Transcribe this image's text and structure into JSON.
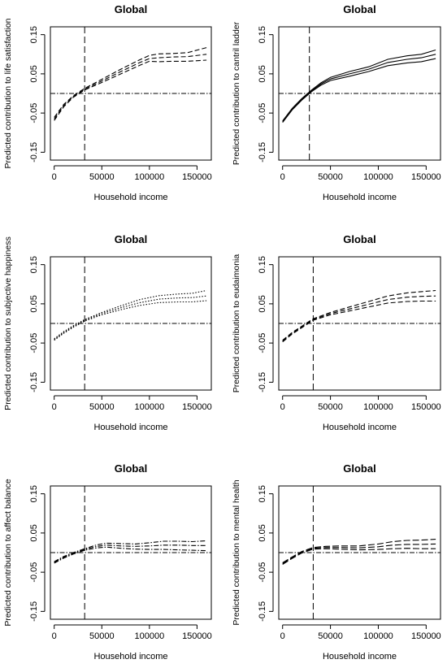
{
  "chart_data": [
    {
      "type": "line",
      "title": "Global",
      "xlabel": "Household income",
      "ylabel": "Predicted contribution to life satisfaction",
      "xlim": [
        -4000,
        165000
      ],
      "ylim": [
        -0.17,
        0.17
      ],
      "xticks": [
        0,
        50000,
        100000,
        150000
      ],
      "xticklabels": [
        "0",
        "50000",
        "100000",
        "150000"
      ],
      "yticks": [
        -0.15,
        -0.05,
        0.05,
        0.15
      ],
      "yticklabels": [
        "-0.15",
        "-0.05",
        "0.05",
        "0.15"
      ],
      "vline": 32000,
      "hline": 0,
      "line_style": "dashed",
      "x": [
        0,
        10000,
        20000,
        32000,
        50000,
        70000,
        90000,
        100000,
        110000,
        125000,
        140000,
        160000
      ],
      "series": [
        {
          "values": [
            -0.061,
            -0.028,
            -0.006,
            0.013,
            0.036,
            0.062,
            0.086,
            0.097,
            0.101,
            0.102,
            0.104,
            0.117
          ]
        },
        {
          "values": [
            -0.065,
            -0.031,
            -0.008,
            0.011,
            0.032,
            0.056,
            0.079,
            0.089,
            0.091,
            0.093,
            0.094,
            0.1
          ]
        },
        {
          "values": [
            -0.069,
            -0.034,
            -0.01,
            0.009,
            0.028,
            0.05,
            0.072,
            0.082,
            0.081,
            0.082,
            0.082,
            0.085
          ]
        }
      ]
    },
    {
      "type": "line",
      "title": "Global",
      "xlabel": "Household income",
      "ylabel": "Predicted contribution to cantril ladder",
      "xlim": [
        -4000,
        165000
      ],
      "ylim": [
        -0.17,
        0.17
      ],
      "xticks": [
        0,
        50000,
        100000,
        150000
      ],
      "xticklabels": [
        "0",
        "50000",
        "100000",
        "150000"
      ],
      "yticks": [
        -0.15,
        -0.05,
        0.05,
        0.15
      ],
      "yticklabels": [
        "-0.15",
        "-0.05",
        "0.05",
        "0.15"
      ],
      "vline": 28000,
      "hline": 0,
      "line_style": "solid",
      "x": [
        0,
        10000,
        20000,
        30000,
        40000,
        50000,
        70000,
        90000,
        110000,
        130000,
        145000,
        160000
      ],
      "series": [
        {
          "values": [
            -0.07,
            -0.038,
            -0.013,
            0.008,
            0.027,
            0.041,
            0.056,
            0.068,
            0.087,
            0.096,
            0.1,
            0.111
          ]
        },
        {
          "values": [
            -0.072,
            -0.04,
            -0.015,
            0.006,
            0.024,
            0.037,
            0.05,
            0.062,
            0.079,
            0.087,
            0.091,
            0.1
          ]
        },
        {
          "values": [
            -0.074,
            -0.042,
            -0.017,
            0.004,
            0.021,
            0.033,
            0.044,
            0.056,
            0.071,
            0.078,
            0.081,
            0.089
          ]
        }
      ]
    },
    {
      "type": "line",
      "title": "Global",
      "xlabel": "Household income",
      "ylabel": "Predicted contribution to subjective happiness",
      "xlim": [
        -4000,
        165000
      ],
      "ylim": [
        -0.17,
        0.17
      ],
      "xticks": [
        0,
        50000,
        100000,
        150000
      ],
      "xticklabels": [
        "0",
        "50000",
        "100000",
        "150000"
      ],
      "yticks": [
        -0.15,
        -0.05,
        0.05,
        0.15
      ],
      "yticklabels": [
        "-0.15",
        "-0.05",
        "0.05",
        "0.15"
      ],
      "vline": 32000,
      "hline": 0,
      "line_style": "dotted",
      "x": [
        0,
        10000,
        20000,
        32000,
        50000,
        70000,
        90000,
        110000,
        130000,
        145000,
        160000
      ],
      "series": [
        {
          "values": [
            -0.039,
            -0.021,
            -0.006,
            0.01,
            0.028,
            0.045,
            0.061,
            0.071,
            0.075,
            0.077,
            0.084
          ]
        },
        {
          "values": [
            -0.041,
            -0.023,
            -0.008,
            0.008,
            0.025,
            0.04,
            0.053,
            0.062,
            0.065,
            0.066,
            0.07
          ]
        },
        {
          "values": [
            -0.043,
            -0.025,
            -0.01,
            0.006,
            0.022,
            0.035,
            0.046,
            0.053,
            0.055,
            0.055,
            0.058
          ]
        }
      ]
    },
    {
      "type": "line",
      "title": "Global",
      "xlabel": "Household income",
      "ylabel": "Predicted contribution to eudaimonia",
      "xlim": [
        -4000,
        165000
      ],
      "ylim": [
        -0.17,
        0.17
      ],
      "xticks": [
        0,
        50000,
        100000,
        150000
      ],
      "xticklabels": [
        "0",
        "50000",
        "100000",
        "150000"
      ],
      "yticks": [
        -0.15,
        -0.05,
        0.05,
        0.15
      ],
      "yticklabels": [
        "-0.15",
        "-0.05",
        "0.05",
        "0.15"
      ],
      "vline": 32000,
      "hline": 0,
      "line_style": "dashed",
      "x": [
        0,
        10000,
        20000,
        32000,
        50000,
        70000,
        90000,
        110000,
        130000,
        145000,
        160000
      ],
      "series": [
        {
          "values": [
            -0.043,
            -0.023,
            -0.007,
            0.012,
            0.028,
            0.042,
            0.056,
            0.07,
            0.078,
            0.081,
            0.084
          ]
        },
        {
          "values": [
            -0.045,
            -0.025,
            -0.009,
            0.01,
            0.025,
            0.037,
            0.049,
            0.061,
            0.067,
            0.069,
            0.07
          ]
        },
        {
          "values": [
            -0.047,
            -0.027,
            -0.011,
            0.008,
            0.022,
            0.032,
            0.042,
            0.052,
            0.056,
            0.057,
            0.057
          ]
        }
      ]
    },
    {
      "type": "line",
      "title": "Global",
      "xlabel": "Household income",
      "ylabel": "Predicted contribution to affect balance",
      "xlim": [
        -4000,
        165000
      ],
      "ylim": [
        -0.17,
        0.17
      ],
      "xticks": [
        0,
        50000,
        100000,
        150000
      ],
      "xticklabels": [
        "0",
        "50000",
        "100000",
        "150000"
      ],
      "yticks": [
        -0.15,
        -0.05,
        0.05,
        0.15
      ],
      "yticklabels": [
        "-0.15",
        "-0.05",
        "0.05",
        "0.15"
      ],
      "vline": 32000,
      "hline": 0,
      "line_style": "dash-dot",
      "x": [
        0,
        10000,
        20000,
        32000,
        45000,
        55000,
        70000,
        85000,
        100000,
        115000,
        130000,
        145000,
        160000
      ],
      "series": [
        {
          "values": [
            -0.023,
            -0.01,
            0.0,
            0.01,
            0.02,
            0.024,
            0.023,
            0.022,
            0.025,
            0.029,
            0.029,
            0.028,
            0.03
          ]
        },
        {
          "values": [
            -0.025,
            -0.012,
            -0.002,
            0.008,
            0.016,
            0.019,
            0.017,
            0.016,
            0.017,
            0.019,
            0.019,
            0.018,
            0.018
          ]
        },
        {
          "values": [
            -0.027,
            -0.014,
            -0.004,
            0.006,
            0.012,
            0.014,
            0.011,
            0.009,
            0.008,
            0.008,
            0.007,
            0.006,
            0.005
          ]
        }
      ]
    },
    {
      "type": "line",
      "title": "Global",
      "xlabel": "Household income",
      "ylabel": "Predicted contribution to mental health",
      "xlim": [
        -4000,
        165000
      ],
      "ylim": [
        -0.17,
        0.17
      ],
      "xticks": [
        0,
        50000,
        100000,
        150000
      ],
      "xticklabels": [
        "0",
        "50000",
        "100000",
        "150000"
      ],
      "yticks": [
        -0.15,
        -0.05,
        0.05,
        0.15
      ],
      "yticklabels": [
        "-0.15",
        "-0.05",
        "0.05",
        "0.15"
      ],
      "vline": 32000,
      "hline": 0,
      "line_style": "long-dash",
      "x": [
        0,
        10000,
        20000,
        32000,
        45000,
        60000,
        80000,
        100000,
        115000,
        130000,
        145000,
        160000
      ],
      "series": [
        {
          "values": [
            -0.026,
            -0.011,
            0.003,
            0.013,
            0.016,
            0.017,
            0.017,
            0.022,
            0.028,
            0.031,
            0.032,
            0.034
          ]
        },
        {
          "values": [
            -0.028,
            -0.013,
            0.001,
            0.011,
            0.013,
            0.013,
            0.012,
            0.015,
            0.019,
            0.021,
            0.021,
            0.022
          ]
        },
        {
          "values": [
            -0.03,
            -0.015,
            -0.001,
            0.009,
            0.01,
            0.009,
            0.007,
            0.008,
            0.01,
            0.011,
            0.01,
            0.01
          ]
        }
      ]
    }
  ]
}
